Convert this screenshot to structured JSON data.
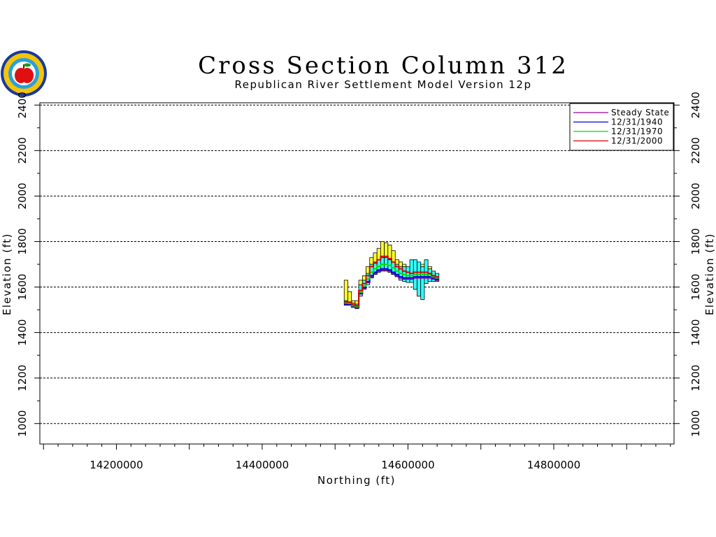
{
  "chart_data": {
    "type": "area",
    "title": "Cross Section Column 312",
    "subtitle": "Republican River Settlement Model Version 12p",
    "xlabel": "Northing (ft)",
    "ylabel": "Elevation (ft)",
    "xlim": [
      14095000,
      14965000
    ],
    "ylim": [
      910000,
      2410000
    ],
    "y_display_divisor": 1000,
    "xticks": [
      14200000,
      14400000,
      14600000,
      14800000
    ],
    "xtick_labels": [
      "14200000",
      "14400000",
      "14600000",
      "14800000"
    ],
    "yticks": [
      1000,
      1200,
      1400,
      1600,
      1800,
      2000,
      2200,
      2400
    ],
    "ytick_labels": [
      "1000",
      "1200",
      "1400",
      "1600",
      "1800",
      "2000",
      "2200",
      "2400"
    ],
    "grid": "horizontal dashed",
    "legend_position": "top-right",
    "cell_width": 5000,
    "x": [
      14515000,
      14520000,
      14525000,
      14530000,
      14535000,
      14540000,
      14545000,
      14550000,
      14555000,
      14560000,
      14565000,
      14570000,
      14575000,
      14580000,
      14585000,
      14590000,
      14595000,
      14600000,
      14605000,
      14610000,
      14615000,
      14620000,
      14625000,
      14630000,
      14635000,
      14640000
    ],
    "layers": {
      "bottom_edge": [
        1520,
        1520,
        1510,
        1505,
        1560,
        1590,
        1610,
        1640,
        1655,
        1665,
        1670,
        1670,
        1665,
        1655,
        1645,
        1630,
        1625,
        1620,
        1620,
        1590,
        1560,
        1545,
        1615,
        1625,
        1625,
        1625
      ],
      "cyan_top": [
        1540,
        1535,
        1530,
        1525,
        1610,
        1630,
        1660,
        1700,
        1710,
        1720,
        1730,
        1730,
        1720,
        1710,
        1700,
        1690,
        1690,
        1690,
        1720,
        1720,
        1710,
        1690,
        1720,
        1680,
        1670,
        1660
      ],
      "yellow_top": [
        1630,
        1580,
        1540,
        1540,
        1630,
        1650,
        1690,
        1730,
        1750,
        1770,
        1800,
        1795,
        1785,
        1760,
        1720,
        1710,
        1700,
        1690,
        1700,
        1690,
        1680,
        1700,
        1710,
        1690,
        1660,
        1650
      ]
    },
    "series": [
      {
        "name": "Steady State",
        "color": "#990099",
        "values": [
          1525,
          1523,
          1515,
          1510,
          1570,
          1595,
          1620,
          1645,
          1660,
          1670,
          1675,
          1675,
          1670,
          1660,
          1650,
          1640,
          1635,
          1635,
          1635,
          1640,
          1640,
          1640,
          1640,
          1640,
          1635,
          1630
        ]
      },
      {
        "name": "12/31/1940",
        "color": "#0000dd",
        "values": [
          1525,
          1524,
          1516,
          1511,
          1572,
          1598,
          1624,
          1650,
          1665,
          1675,
          1680,
          1680,
          1675,
          1665,
          1655,
          1645,
          1640,
          1640,
          1640,
          1645,
          1645,
          1645,
          1645,
          1645,
          1640,
          1635
        ]
      },
      {
        "name": "12/31/1970",
        "color": "#00dd00",
        "values": [
          1530,
          1528,
          1518,
          1514,
          1578,
          1605,
          1635,
          1665,
          1680,
          1690,
          1700,
          1700,
          1695,
          1685,
          1670,
          1660,
          1655,
          1650,
          1650,
          1655,
          1655,
          1655,
          1655,
          1655,
          1645,
          1640
        ]
      },
      {
        "name": "12/31/2000",
        "color": "#dd0000",
        "values": [
          1535,
          1533,
          1522,
          1518,
          1585,
          1615,
          1650,
          1690,
          1705,
          1720,
          1735,
          1735,
          1725,
          1710,
          1690,
          1680,
          1670,
          1665,
          1660,
          1665,
          1665,
          1665,
          1665,
          1660,
          1650,
          1645
        ]
      }
    ],
    "fill_colors": {
      "yellow": "#ffff33",
      "cyan": "#33ffff"
    }
  }
}
